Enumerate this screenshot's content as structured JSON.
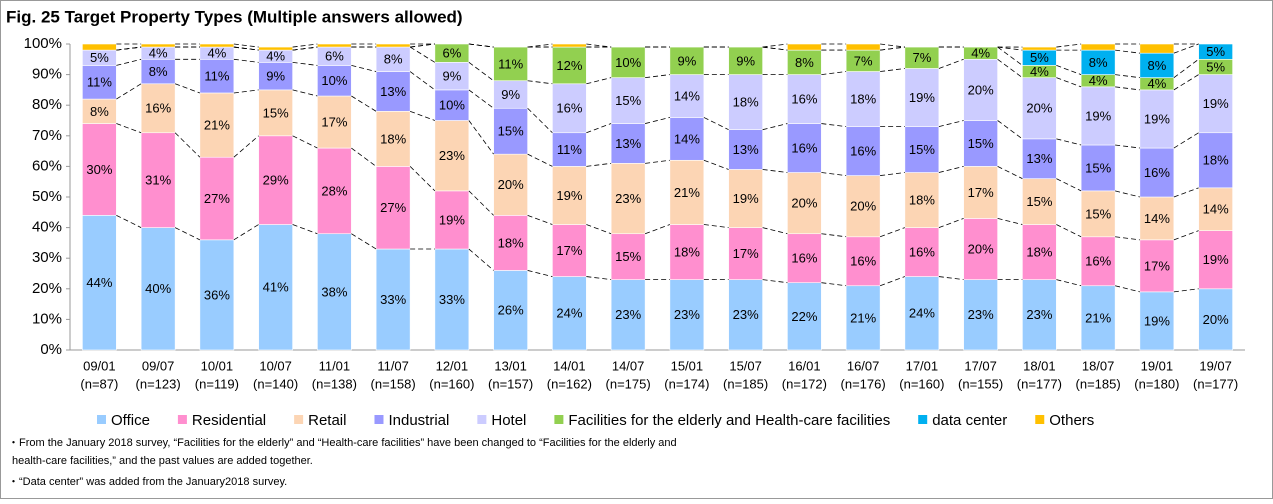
{
  "chart_data": {
    "type": "stacked-bar",
    "title": "Fig. 25 Target Property Types (Multiple answers allowed)",
    "categories": [
      "09/01",
      "09/07",
      "10/01",
      "10/07",
      "11/01",
      "11/07",
      "12/01",
      "13/01",
      "14/01",
      "14/07",
      "15/01",
      "15/07",
      "16/01",
      "16/07",
      "17/01",
      "17/07",
      "18/01",
      "18/07",
      "19/01",
      "19/07"
    ],
    "category_sublabels": [
      "(n=87)",
      "(n=123)",
      "(n=119)",
      "(n=140)",
      "(n=138)",
      "(n=158)",
      "(n=160)",
      "(n=157)",
      "(n=162)",
      "(n=175)",
      "(n=174)",
      "(n=185)",
      "(n=172)",
      "(n=176)",
      "(n=160)",
      "(n=155)",
      "(n=177)",
      "(n=185)",
      "(n=180)",
      "(n=177)"
    ],
    "ylim": [
      0,
      100
    ],
    "yticks": [
      {
        "value": 0,
        "label": "0%"
      },
      {
        "value": 10,
        "label": "10%"
      },
      {
        "value": 20,
        "label": "20%"
      },
      {
        "value": 30,
        "label": "30%"
      },
      {
        "value": 40,
        "label": "40%"
      },
      {
        "value": 50,
        "label": "50%"
      },
      {
        "value": 60,
        "label": "60%"
      },
      {
        "value": 70,
        "label": "70%"
      },
      {
        "value": 80,
        "label": "80%"
      },
      {
        "value": 90,
        "label": "90%"
      },
      {
        "value": 100,
        "label": "100%"
      }
    ],
    "series": [
      {
        "name": "Office",
        "color": "#99ccff",
        "values": [
          44,
          40,
          36,
          41,
          38,
          33,
          33,
          26,
          24,
          23,
          23,
          23,
          22,
          21,
          24,
          23,
          23,
          21,
          19,
          20
        ],
        "value_labels": [
          "44%",
          "40%",
          "36%",
          "41%",
          "38%",
          "33%",
          "33%",
          "26%",
          "24%",
          "23%",
          "23%",
          "23%",
          "22%",
          "21%",
          "24%",
          "23%",
          "23%",
          "21%",
          "19%",
          "20%"
        ]
      },
      {
        "name": "Residential",
        "color": "#ff8fcf",
        "values": [
          30,
          31,
          27,
          29,
          28,
          27,
          19,
          18,
          17,
          15,
          18,
          17,
          16,
          16,
          16,
          20,
          18,
          16,
          17,
          19
        ],
        "value_labels": [
          "30%",
          "31%",
          "27%",
          "29%",
          "28%",
          "27%",
          "19%",
          "18%",
          "17%",
          "15%",
          "18%",
          "17%",
          "16%",
          "16%",
          "16%",
          "20%",
          "18%",
          "16%",
          "17%",
          "19%"
        ]
      },
      {
        "name": "Retail",
        "color": "#fcd5b4",
        "values": [
          8,
          16,
          21,
          15,
          17,
          18,
          23,
          20,
          19,
          23,
          21,
          19,
          20,
          20,
          18,
          17,
          15,
          15,
          14,
          14
        ],
        "value_labels": [
          "8%",
          "16%",
          "21%",
          "15%",
          "17%",
          "18%",
          "23%",
          "20%",
          "19%",
          "23%",
          "21%",
          "19%",
          "20%",
          "20%",
          "18%",
          "17%",
          "15%",
          "15%",
          "14%",
          "14%"
        ]
      },
      {
        "name": "Industrial",
        "color": "#9999ff",
        "values": [
          11,
          8,
          11,
          9,
          10,
          13,
          10,
          15,
          11,
          13,
          14,
          13,
          16,
          16,
          15,
          15,
          13,
          15,
          16,
          18
        ],
        "value_labels": [
          "11%",
          "8%",
          "11%",
          "9%",
          "10%",
          "13%",
          "10%",
          "15%",
          "11%",
          "13%",
          "14%",
          "13%",
          "16%",
          "16%",
          "15%",
          "15%",
          "13%",
          "15%",
          "16%",
          "18%"
        ]
      },
      {
        "name": "Hotel",
        "color": "#ccccff",
        "values": [
          5,
          4,
          4,
          4,
          6,
          8,
          9,
          9,
          16,
          15,
          14,
          18,
          16,
          18,
          19,
          20,
          20,
          19,
          19,
          19
        ],
        "value_labels": [
          "5%",
          "4%",
          "4%",
          "4%",
          "6%",
          "8%",
          "9%",
          "9%",
          "16%",
          "15%",
          "14%",
          "18%",
          "16%",
          "18%",
          "19%",
          "20%",
          "20%",
          "19%",
          "19%",
          "19%"
        ]
      },
      {
        "name": "Facilities for the elderly and Health-care facilities",
        "color": "#92d050",
        "values": [
          null,
          null,
          null,
          null,
          null,
          null,
          6,
          11,
          12,
          10,
          9,
          9,
          8,
          7,
          7,
          4,
          4,
          4,
          4,
          5
        ],
        "value_labels": [
          null,
          null,
          null,
          null,
          null,
          null,
          "6%",
          "11%",
          "12%",
          "10%",
          "9%",
          "9%",
          "8%",
          "7%",
          "7%",
          "4%",
          "4%",
          "4%",
          "4%",
          "5%"
        ]
      },
      {
        "name": "data center",
        "color": "#00b0f0",
        "values": [
          null,
          null,
          null,
          null,
          null,
          null,
          null,
          null,
          null,
          null,
          null,
          null,
          null,
          null,
          null,
          null,
          5,
          8,
          8,
          5
        ],
        "value_labels": [
          null,
          null,
          null,
          null,
          null,
          null,
          null,
          null,
          null,
          null,
          null,
          null,
          null,
          null,
          null,
          null,
          "5%",
          "8%",
          "8%",
          "5%"
        ]
      },
      {
        "name": "Others",
        "color": "#ffc000",
        "values": [
          2,
          1,
          1,
          1,
          1,
          1,
          null,
          null,
          1,
          null,
          null,
          null,
          2,
          2,
          null,
          null,
          1,
          2,
          3,
          null
        ],
        "value_labels": [
          null,
          null,
          null,
          null,
          null,
          null,
          null,
          null,
          null,
          null,
          null,
          null,
          null,
          null,
          null,
          null,
          null,
          null,
          null,
          null
        ]
      }
    ],
    "notes": [
      "・From the January 2018 survey, “Facilities for the elderly” and “Health-care facilities” have been changed to “Facilities for the elderly and",
      "health-care facilities,” and the past values are added together.",
      "・“Data center” was added from the January2018 survey."
    ]
  }
}
